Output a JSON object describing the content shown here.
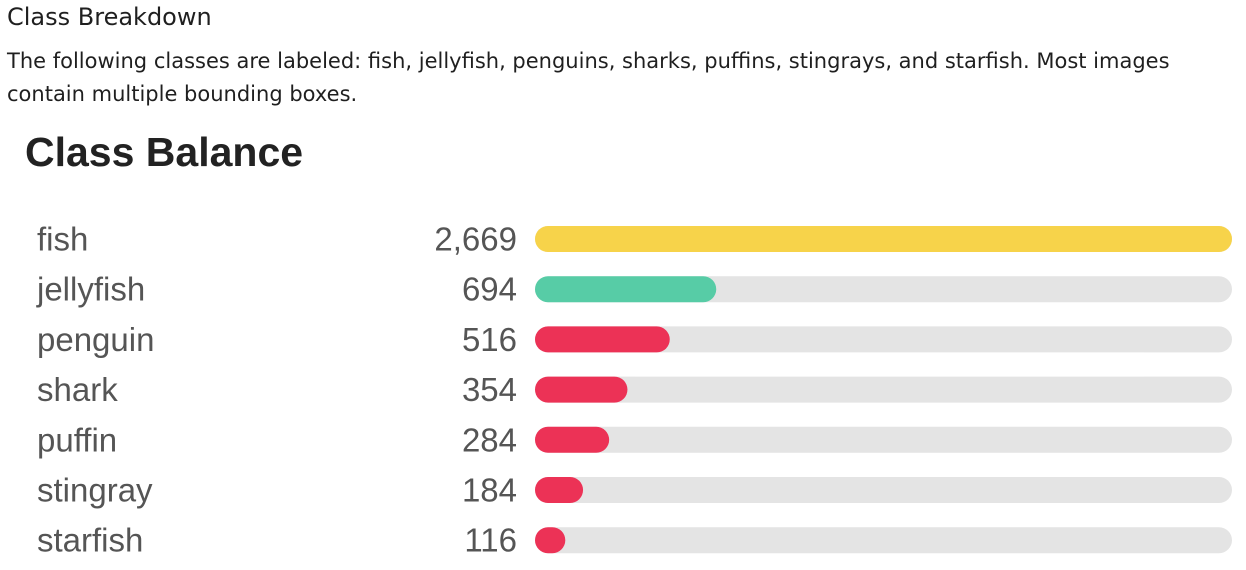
{
  "header": {
    "section_title": "Class Breakdown",
    "description": "The following classes are labeled: fish, jellyfish, penguins, sharks, puffins, stingrays, and starfish. Most images contain multiple bounding boxes."
  },
  "chart_data": {
    "type": "bar",
    "orientation": "horizontal",
    "title": "Class Balance",
    "categories": [
      "fish",
      "jellyfish",
      "penguin",
      "shark",
      "puffin",
      "stingray",
      "starfish"
    ],
    "values": [
      2669,
      694,
      516,
      354,
      284,
      184,
      116
    ],
    "value_labels": [
      "2,669",
      "694",
      "516",
      "354",
      "284",
      "184",
      "116"
    ],
    "xlim": [
      0,
      2669
    ],
    "grid": false,
    "legend": "none"
  },
  "colors": {
    "fish": "#f7d34a",
    "jellyfish": "#57cca6",
    "minor": "#ec3256",
    "track": "#e4e4e4",
    "label_text": "#555555"
  }
}
